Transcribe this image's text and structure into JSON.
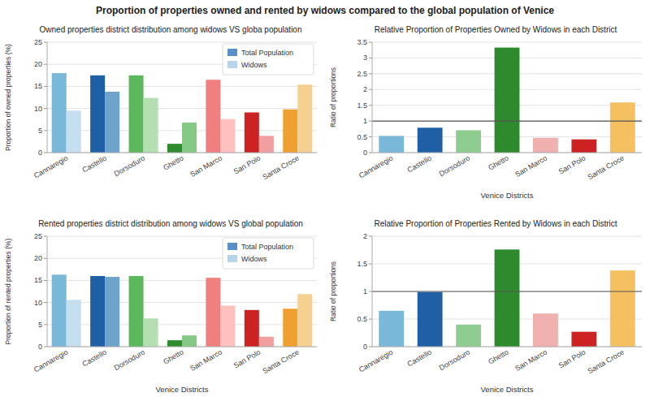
{
  "title": "Proportion of properties owned and rented by widows compared to the global population of Venice",
  "chart_data": [
    {
      "type": "bar",
      "title": "Owned properties district distribution among widows VS globa population",
      "y_label": "Proportion of owned properties (%)",
      "categories": [
        "Cannaregio",
        "Castello",
        "Dorsoduro",
        "Ghetto",
        "San Marco",
        "San Polo",
        "Santa Croce"
      ],
      "series": [
        {
          "name": "Total Population",
          "color": "#5b8fc9",
          "colors": [
            "#7ab8d9",
            "#1f5fa6",
            "#5cb85c",
            "#2d8a2d",
            "#f08080",
            "#cc2222",
            "#f0a030"
          ],
          "values": [
            18.0,
            17.5,
            17.5,
            2.0,
            16.5,
            9.1,
            9.8
          ]
        },
        {
          "name": "Widows",
          "color": "#b8d4e8",
          "colors": [
            "#c5dff0",
            "#6fa3cc",
            "#b3dfb3",
            "#85c985",
            "#ffc0c0",
            "#f0a0a0",
            "#f5d090"
          ],
          "values": [
            9.5,
            13.8,
            12.4,
            6.8,
            7.6,
            3.8,
            15.4
          ]
        }
      ],
      "ylim": [
        0,
        25
      ],
      "yticks": [
        0,
        5,
        10,
        15,
        20,
        25
      ],
      "grid": true,
      "legend": "upper right"
    },
    {
      "type": "bar",
      "title": "Relative Proportion of Properties Owned by Widows in each District",
      "x_label": "Venice Districts",
      "y_label": "Ratio of proportions",
      "categories": [
        "Cannaregio",
        "Castello",
        "Dorsoduro",
        "Ghetto",
        "San Marco",
        "San Polo",
        "Santa Croce"
      ],
      "values": [
        0.53,
        0.79,
        0.71,
        3.33,
        0.47,
        0.42,
        1.59
      ],
      "colors": [
        "#7ab8d9",
        "#1f5fa6",
        "#8fcc8f",
        "#2d8a2d",
        "#f0b0b0",
        "#cc2222",
        "#f5c060"
      ],
      "hline": 1,
      "ylim": [
        0,
        3.5
      ],
      "yticks": [
        0,
        0.5,
        1,
        1.5,
        2,
        2.5,
        3,
        3.5
      ],
      "grid": true
    },
    {
      "type": "bar",
      "title": "Rented properties district distribution among widows VS global population",
      "x_label": "Venice Districts",
      "y_label": "Proportion of rented properties (%)",
      "categories": [
        "Cannaregio",
        "Castello",
        "Dorsoduro",
        "Ghetto",
        "San Marco",
        "San Polo",
        "Santa Croce"
      ],
      "series": [
        {
          "name": "Total Population",
          "color": "#5b8fc9",
          "colors": [
            "#7ab8d9",
            "#1f5fa6",
            "#5cb85c",
            "#2d8a2d",
            "#f08080",
            "#cc2222",
            "#f0a030"
          ],
          "values": [
            16.3,
            16.0,
            16.0,
            1.45,
            15.6,
            8.3,
            8.6
          ]
        },
        {
          "name": "Widows",
          "color": "#b8d4e8",
          "colors": [
            "#c5dff0",
            "#6fa3cc",
            "#b3dfb3",
            "#85c985",
            "#ffc0c0",
            "#f0a0a0",
            "#f5d090"
          ],
          "values": [
            10.6,
            15.8,
            6.4,
            2.55,
            9.3,
            2.25,
            11.9
          ]
        }
      ],
      "ylim": [
        0,
        25
      ],
      "yticks": [
        0,
        5,
        10,
        15,
        20,
        25
      ],
      "grid": true,
      "legend": "upper right"
    },
    {
      "type": "bar",
      "title": "Relative Proportion of Properties Rented by Widows in each District",
      "x_label": "Venice Districts",
      "y_label": "Ratio of proportions",
      "categories": [
        "Cannaregio",
        "Castello",
        "Dorsoduro",
        "Ghetto",
        "San Marco",
        "San Polo",
        "Santa Croce"
      ],
      "values": [
        0.65,
        0.99,
        0.4,
        1.76,
        0.6,
        0.27,
        1.38
      ],
      "colors": [
        "#7ab8d9",
        "#1f5fa6",
        "#8fcc8f",
        "#2d8a2d",
        "#f0b0b0",
        "#cc2222",
        "#f5c060"
      ],
      "hline": 1,
      "ylim": [
        0,
        2
      ],
      "yticks": [
        0,
        0.5,
        1,
        1.5,
        2
      ],
      "grid": true
    }
  ]
}
